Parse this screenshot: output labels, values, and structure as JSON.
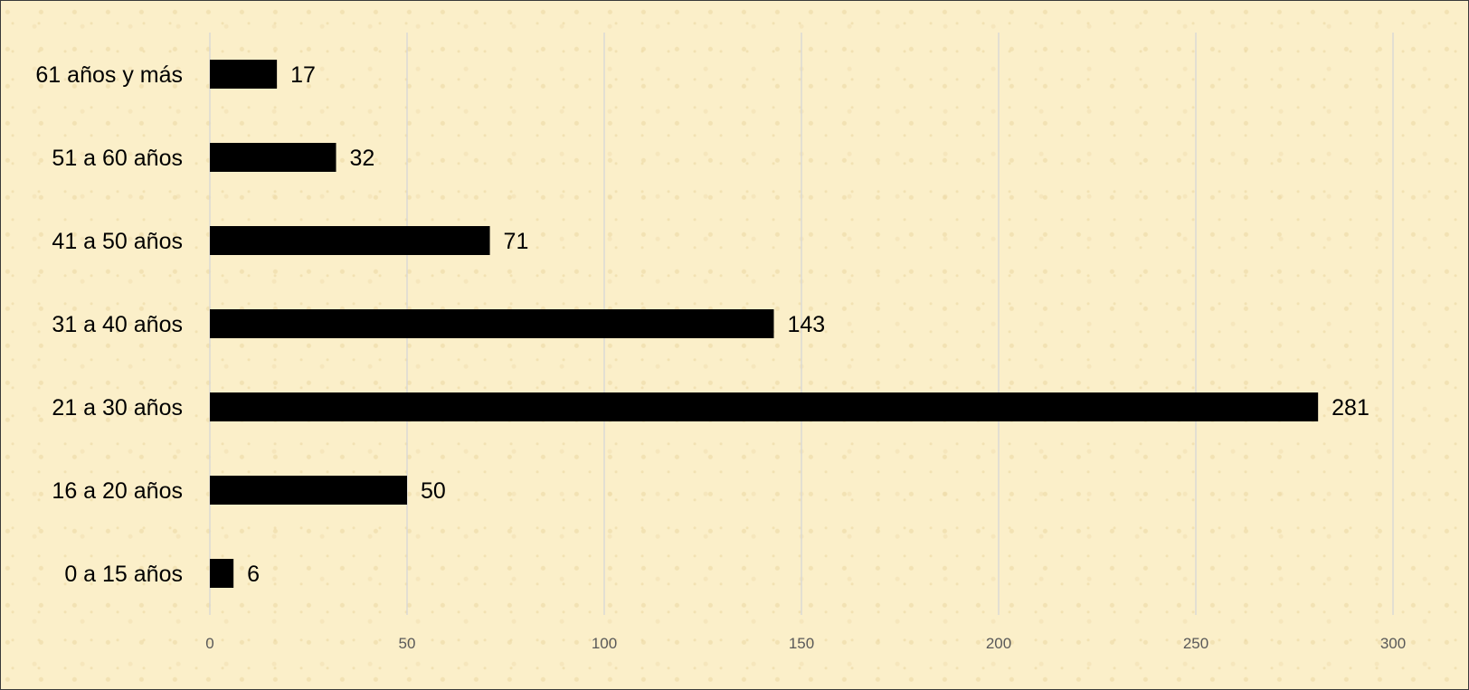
{
  "chart_data": {
    "type": "bar",
    "orientation": "horizontal",
    "categories": [
      "0 a 15 años",
      "16 a 20 años",
      "21 a 30 años",
      "31 a 40 años",
      "41 a 50 años",
      "51 a 60 años",
      "61 años y más"
    ],
    "values": [
      6,
      50,
      281,
      143,
      71,
      32,
      17
    ],
    "data_labels": [
      "6",
      "50",
      "281",
      "143",
      "71",
      "32",
      "17"
    ],
    "xlim": [
      0,
      300
    ],
    "x_ticks": [
      0,
      50,
      100,
      150,
      200,
      250,
      300
    ],
    "x_tick_labels": [
      "0",
      "50",
      "100",
      "150",
      "200",
      "250",
      "300"
    ],
    "title": "",
    "xlabel": "",
    "ylabel": "",
    "grid": "vertical",
    "legend": "none",
    "bar_color": "#000000",
    "background_color": "#fbefc9",
    "gridline_color": "#d6d6d6"
  }
}
